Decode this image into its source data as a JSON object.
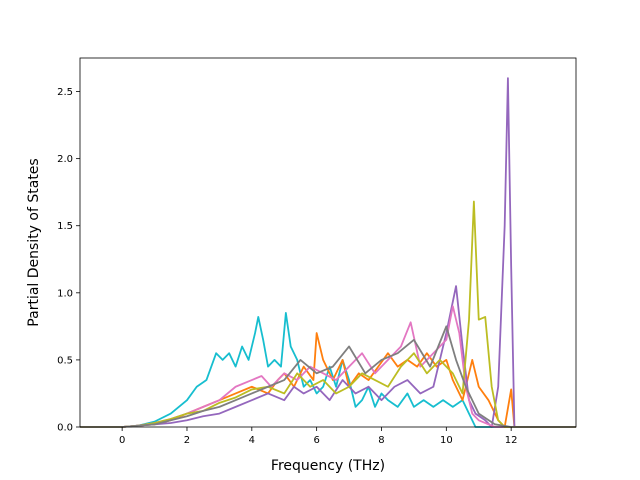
{
  "chart_data": {
    "type": "line",
    "title": "",
    "xlabel": "Frequency (THz)",
    "ylabel": "Partial Density of States",
    "xlim": [
      -1.3,
      14.0
    ],
    "ylim": [
      0.0,
      2.75
    ],
    "xticks": [
      0,
      2,
      4,
      6,
      8,
      10,
      12
    ],
    "yticks": [
      0.0,
      0.5,
      1.0,
      1.5,
      2.0,
      2.5
    ],
    "xtick_labels": [
      "0",
      "2",
      "4",
      "6",
      "8",
      "10",
      "12"
    ],
    "ytick_labels": [
      "0.0",
      "0.5",
      "1.0",
      "1.5",
      "2.0",
      "2.5"
    ],
    "grid": false,
    "legend": "none",
    "series": [
      {
        "color": "#17becf",
        "points": [
          [
            -1.3,
            0
          ],
          [
            0,
            0
          ],
          [
            0.5,
            0.01
          ],
          [
            1,
            0.04
          ],
          [
            1.5,
            0.1
          ],
          [
            2,
            0.2
          ],
          [
            2.3,
            0.3
          ],
          [
            2.6,
            0.35
          ],
          [
            2.9,
            0.55
          ],
          [
            3.1,
            0.5
          ],
          [
            3.3,
            0.55
          ],
          [
            3.5,
            0.45
          ],
          [
            3.7,
            0.6
          ],
          [
            3.9,
            0.5
          ],
          [
            4.1,
            0.7
          ],
          [
            4.2,
            0.82
          ],
          [
            4.35,
            0.65
          ],
          [
            4.5,
            0.45
          ],
          [
            4.7,
            0.5
          ],
          [
            4.9,
            0.45
          ],
          [
            5.05,
            0.85
          ],
          [
            5.2,
            0.6
          ],
          [
            5.4,
            0.5
          ],
          [
            5.6,
            0.3
          ],
          [
            5.8,
            0.35
          ],
          [
            6,
            0.25
          ],
          [
            6.2,
            0.3
          ],
          [
            6.4,
            0.45
          ],
          [
            6.6,
            0.3
          ],
          [
            6.8,
            0.5
          ],
          [
            7,
            0.35
          ],
          [
            7.2,
            0.15
          ],
          [
            7.4,
            0.2
          ],
          [
            7.6,
            0.3
          ],
          [
            7.8,
            0.15
          ],
          [
            8,
            0.25
          ],
          [
            8.2,
            0.2
          ],
          [
            8.5,
            0.15
          ],
          [
            8.8,
            0.25
          ],
          [
            9,
            0.15
          ],
          [
            9.3,
            0.2
          ],
          [
            9.6,
            0.15
          ],
          [
            9.9,
            0.2
          ],
          [
            10.2,
            0.15
          ],
          [
            10.5,
            0.2
          ],
          [
            10.7,
            0.1
          ],
          [
            10.9,
            0.0
          ],
          [
            11.3,
            0.0
          ],
          [
            14.0,
            0
          ]
        ]
      },
      {
        "color": "#ff7f0e",
        "points": [
          [
            -1.3,
            0
          ],
          [
            0,
            0
          ],
          [
            0.5,
            0.01
          ],
          [
            1,
            0.02
          ],
          [
            1.5,
            0.05
          ],
          [
            2,
            0.1
          ],
          [
            2.5,
            0.15
          ],
          [
            3,
            0.2
          ],
          [
            3.5,
            0.25
          ],
          [
            4,
            0.3
          ],
          [
            4.5,
            0.25
          ],
          [
            4.8,
            0.35
          ],
          [
            5,
            0.4
          ],
          [
            5.3,
            0.3
          ],
          [
            5.6,
            0.45
          ],
          [
            5.9,
            0.35
          ],
          [
            6,
            0.7
          ],
          [
            6.2,
            0.5
          ],
          [
            6.5,
            0.35
          ],
          [
            6.8,
            0.5
          ],
          [
            7,
            0.3
          ],
          [
            7.3,
            0.4
          ],
          [
            7.6,
            0.35
          ],
          [
            7.9,
            0.45
          ],
          [
            8.2,
            0.55
          ],
          [
            8.5,
            0.45
          ],
          [
            8.8,
            0.5
          ],
          [
            9.1,
            0.45
          ],
          [
            9.4,
            0.55
          ],
          [
            9.7,
            0.45
          ],
          [
            10,
            0.5
          ],
          [
            10.2,
            0.35
          ],
          [
            10.5,
            0.2
          ],
          [
            10.8,
            0.5
          ],
          [
            11,
            0.3
          ],
          [
            11.3,
            0.2
          ],
          [
            11.6,
            0.05
          ],
          [
            11.8,
            0.0
          ],
          [
            12,
            0.28
          ],
          [
            12.1,
            0.0
          ],
          [
            14.0,
            0
          ]
        ]
      },
      {
        "color": "#9467bd",
        "points": [
          [
            -1.3,
            0
          ],
          [
            0,
            0
          ],
          [
            0.5,
            0.01
          ],
          [
            1,
            0.02
          ],
          [
            1.5,
            0.03
          ],
          [
            2,
            0.05
          ],
          [
            2.5,
            0.08
          ],
          [
            3,
            0.1
          ],
          [
            3.5,
            0.15
          ],
          [
            4,
            0.2
          ],
          [
            4.5,
            0.25
          ],
          [
            5,
            0.2
          ],
          [
            5.3,
            0.3
          ],
          [
            5.6,
            0.25
          ],
          [
            6,
            0.3
          ],
          [
            6.4,
            0.2
          ],
          [
            6.8,
            0.35
          ],
          [
            7.2,
            0.25
          ],
          [
            7.6,
            0.3
          ],
          [
            8,
            0.2
          ],
          [
            8.4,
            0.3
          ],
          [
            8.8,
            0.35
          ],
          [
            9.2,
            0.25
          ],
          [
            9.6,
            0.3
          ],
          [
            10,
            0.7
          ],
          [
            10.3,
            1.05
          ],
          [
            10.5,
            0.6
          ],
          [
            10.7,
            0.2
          ],
          [
            10.9,
            0.1
          ],
          [
            11.2,
            0.05
          ],
          [
            11.4,
            0.0
          ],
          [
            11.6,
            0.3
          ],
          [
            11.8,
            1.5
          ],
          [
            11.9,
            2.6
          ],
          [
            12.0,
            1.2
          ],
          [
            12.1,
            0.0
          ],
          [
            14.0,
            0
          ]
        ]
      },
      {
        "color": "#e377c2",
        "points": [
          [
            -1.3,
            0
          ],
          [
            0,
            0
          ],
          [
            0.5,
            0.01
          ],
          [
            1,
            0.03
          ],
          [
            1.5,
            0.06
          ],
          [
            2,
            0.1
          ],
          [
            2.5,
            0.15
          ],
          [
            3,
            0.2
          ],
          [
            3.5,
            0.3
          ],
          [
            4,
            0.35
          ],
          [
            4.3,
            0.38
          ],
          [
            4.6,
            0.3
          ],
          [
            5,
            0.4
          ],
          [
            5.4,
            0.35
          ],
          [
            5.8,
            0.45
          ],
          [
            6.2,
            0.4
          ],
          [
            6.6,
            0.35
          ],
          [
            7,
            0.45
          ],
          [
            7.4,
            0.55
          ],
          [
            7.8,
            0.4
          ],
          [
            8.2,
            0.5
          ],
          [
            8.6,
            0.6
          ],
          [
            8.9,
            0.78
          ],
          [
            9.2,
            0.45
          ],
          [
            9.6,
            0.55
          ],
          [
            10,
            0.65
          ],
          [
            10.2,
            0.9
          ],
          [
            10.4,
            0.7
          ],
          [
            10.6,
            0.3
          ],
          [
            10.8,
            0.1
          ],
          [
            11,
            0.05
          ],
          [
            11.5,
            0.0
          ],
          [
            14.0,
            0
          ]
        ]
      },
      {
        "color": "#bcbd22",
        "points": [
          [
            -1.3,
            0
          ],
          [
            0,
            0
          ],
          [
            0.5,
            0.01
          ],
          [
            1,
            0.03
          ],
          [
            1.5,
            0.06
          ],
          [
            2,
            0.1
          ],
          [
            2.5,
            0.12
          ],
          [
            3,
            0.18
          ],
          [
            3.5,
            0.22
          ],
          [
            4,
            0.28
          ],
          [
            4.5,
            0.3
          ],
          [
            5,
            0.25
          ],
          [
            5.4,
            0.4
          ],
          [
            5.8,
            0.3
          ],
          [
            6.2,
            0.35
          ],
          [
            6.6,
            0.25
          ],
          [
            7,
            0.3
          ],
          [
            7.4,
            0.4
          ],
          [
            7.8,
            0.35
          ],
          [
            8.2,
            0.3
          ],
          [
            8.6,
            0.45
          ],
          [
            9,
            0.55
          ],
          [
            9.4,
            0.4
          ],
          [
            9.8,
            0.5
          ],
          [
            10.2,
            0.4
          ],
          [
            10.5,
            0.25
          ],
          [
            10.7,
            0.8
          ],
          [
            10.85,
            1.68
          ],
          [
            11.0,
            0.8
          ],
          [
            11.2,
            0.82
          ],
          [
            11.4,
            0.3
          ],
          [
            11.6,
            0.05
          ],
          [
            11.8,
            0.0
          ],
          [
            14.0,
            0
          ]
        ]
      },
      {
        "color": "#7f7f7f",
        "points": [
          [
            -1.3,
            0
          ],
          [
            0,
            0
          ],
          [
            0.5,
            0.01
          ],
          [
            1,
            0.02
          ],
          [
            1.5,
            0.05
          ],
          [
            2,
            0.08
          ],
          [
            2.5,
            0.12
          ],
          [
            3,
            0.15
          ],
          [
            3.5,
            0.2
          ],
          [
            4,
            0.25
          ],
          [
            4.5,
            0.3
          ],
          [
            5,
            0.35
          ],
          [
            5.5,
            0.5
          ],
          [
            6,
            0.4
          ],
          [
            6.5,
            0.45
          ],
          [
            7,
            0.6
          ],
          [
            7.5,
            0.4
          ],
          [
            8,
            0.5
          ],
          [
            8.5,
            0.55
          ],
          [
            9,
            0.65
          ],
          [
            9.5,
            0.45
          ],
          [
            10,
            0.75
          ],
          [
            10.3,
            0.5
          ],
          [
            10.6,
            0.3
          ],
          [
            11,
            0.1
          ],
          [
            11.5,
            0.02
          ],
          [
            12,
            0.0
          ],
          [
            14.0,
            0
          ]
        ]
      }
    ]
  }
}
